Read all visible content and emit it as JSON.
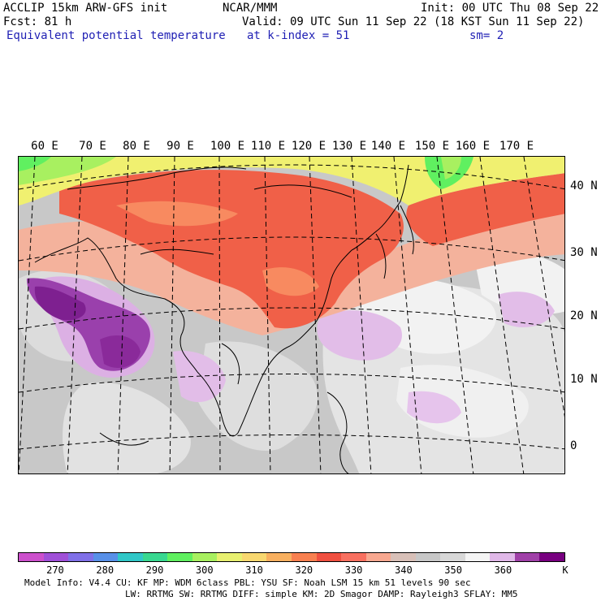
{
  "header": {
    "line1_left": "ACCLIP 15km ARW-GFS init",
    "line1_center": "NCAR/MMM",
    "line1_right": "Init: 00 UTC Thu 08 Sep 22",
    "line2_left": "Fcst:   81 h",
    "line2_right": "Valid: 09 UTC Sun 11 Sep 22 (18 KST Sun 11 Sep 22)",
    "line3_left": "Equivalent potential temperature",
    "line3_center": "at k-index =  51",
    "line3_right": "sm= 2"
  },
  "map": {
    "lon_labels": [
      "60 E",
      "70 E",
      "80 E",
      "90 E",
      "100 E",
      "110 E",
      "120 E",
      "130 E",
      "140 E",
      "150 E",
      "160 E",
      "170 E"
    ],
    "lat_labels": [
      "40 N",
      "30 N",
      "20 N",
      "10 N",
      "0"
    ],
    "colors": {
      "cold_green": "#b8f060",
      "yellow": "#f0f070",
      "orange": "#f8a060",
      "red": "#f06048",
      "salmon": "#f8b8a0",
      "gray": "#c8c8c8",
      "light_gray": "#e6e6e6",
      "white": "#f4f4f4",
      "lavender": "#e0b8e8",
      "purple": "#b060c0",
      "dark_purple": "#8a2a9a"
    }
  },
  "colorbar": {
    "colors": [
      "#cc50cc",
      "#a050d8",
      "#8070e8",
      "#5890e8",
      "#30c8c8",
      "#38d890",
      "#60f060",
      "#a8f060",
      "#e8f070",
      "#f8d870",
      "#f8b060",
      "#f88050",
      "#f05040",
      "#f87060",
      "#f8a890",
      "#d8c0b8",
      "#c8c8c8",
      "#d8d8d8",
      "#f4f4f4",
      "#e0b8e8",
      "#a040a8",
      "#780080"
    ],
    "labels": [
      "270",
      "280",
      "290",
      "300",
      "310",
      "320",
      "330",
      "340",
      "350",
      "360"
    ],
    "unit": "K"
  },
  "footer": {
    "line1": "Model Info: V4.4     CU: KF        MP: WDM 6class  PBL: YSU      SF: Noah LSM     15 km   51 levels   90 sec",
    "line2": "LW: RRTMG    SW: RRTMG  DIFF: simple KM: 2D Smagor DAMP: Rayleigh3  SFLAY: MM5"
  }
}
